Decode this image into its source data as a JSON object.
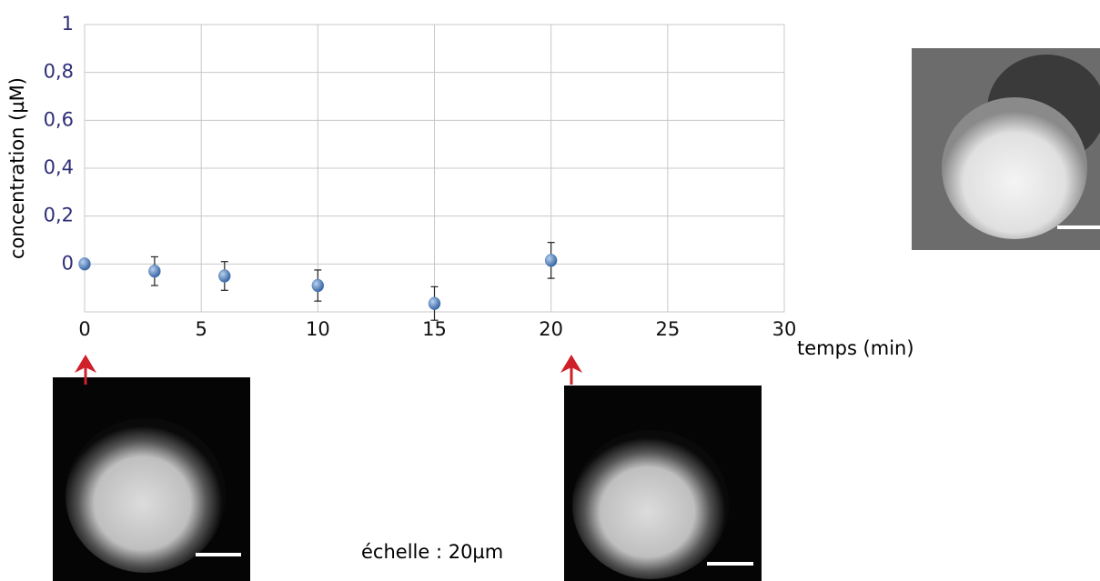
{
  "chart_data": {
    "type": "scatter",
    "x_label": "temps (min)",
    "y_label": "concentration (µM)",
    "annotation": "échelle : 20µm",
    "x": [
      0,
      3,
      6,
      10,
      15,
      20
    ],
    "values": [
      0,
      -0.03,
      -0.05,
      -0.09,
      -0.165,
      0.015
    ],
    "errors": [
      null,
      0.06,
      0.06,
      0.065,
      0.07,
      0.075
    ],
    "color": "#4f7fc0",
    "xlim": [
      0,
      30
    ],
    "xticks": [
      0,
      5,
      10,
      15,
      20,
      25,
      30
    ],
    "ylim": [
      -0.2,
      1
    ],
    "yticks": [
      0,
      {
        "value": 0.2,
        "label": "0,2"
      },
      {
        "value": 0.4,
        "label": "0,4"
      },
      {
        "value": 0.6,
        "label": "0,6"
      },
      {
        "value": 0.8,
        "label": "0,8"
      },
      1
    ],
    "grid": true
  }
}
